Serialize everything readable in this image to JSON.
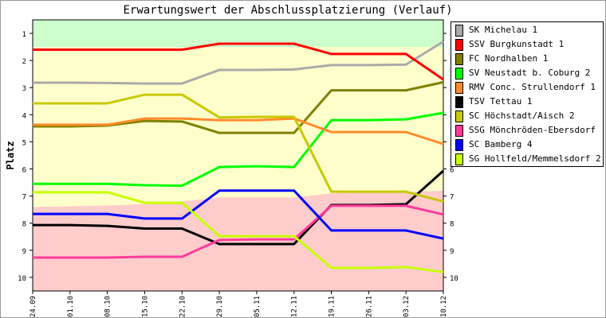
{
  "chart_data": {
    "type": "line",
    "title": "Erwartungswert der Abschlussplatzierung (Verlauf)",
    "xlabel": "",
    "ylabel": "Platz",
    "ylim": [
      0.5,
      10.5
    ],
    "y_inverted": true,
    "y_ticks": [
      1,
      2,
      3,
      4,
      5,
      6,
      7,
      8,
      9,
      10
    ],
    "categories": [
      "24.09",
      "01.10",
      "08.10",
      "15.10",
      "22.10",
      "29.10",
      "05.11",
      "12.11",
      "19.11",
      "26.11",
      "03.12",
      "10.12"
    ],
    "zones": {
      "promotion_boundary": [
        1.5,
        1.5,
        1.5,
        1.5,
        1.5,
        1.5,
        1.5,
        1.5,
        1.5,
        1.5,
        1.5,
        1.5
      ],
      "relegation_boundary": [
        7.4,
        7.38,
        7.35,
        7.3,
        7.2,
        7.05,
        7.05,
        7.05,
        6.9,
        6.85,
        6.85,
        6.8
      ],
      "colors": {
        "promotion": "#ccffcc",
        "middle": "#ffffcc",
        "relegation": "#ffcccc"
      }
    },
    "series": [
      {
        "name": "SK Michelau 1",
        "color": "#aaaaaa",
        "values": [
          2.82,
          2.82,
          2.83,
          2.85,
          2.85,
          2.35,
          2.35,
          2.33,
          2.17,
          2.17,
          2.15,
          1.3
        ]
      },
      {
        "name": "SSV Burgkunstadt 1",
        "color": "#ff0000",
        "values": [
          1.6,
          1.6,
          1.6,
          1.6,
          1.6,
          1.38,
          1.38,
          1.38,
          1.76,
          1.76,
          1.76,
          2.7
        ]
      },
      {
        "name": "FC Nordhalben 1",
        "color": "#808000",
        "values": [
          4.43,
          4.43,
          4.4,
          4.23,
          4.25,
          4.67,
          4.67,
          4.67,
          3.1,
          3.1,
          3.1,
          2.8
        ]
      },
      {
        "name": "SV Neustadt b. Coburg 2",
        "color": "#00ff00",
        "values": [
          6.55,
          6.55,
          6.55,
          6.6,
          6.62,
          5.93,
          5.9,
          5.93,
          4.2,
          4.2,
          4.17,
          3.93
        ]
      },
      {
        "name": "RMV Conc. Strullendorf 1",
        "color": "#ff8c28",
        "values": [
          4.37,
          4.37,
          4.37,
          4.14,
          4.14,
          4.2,
          4.2,
          4.14,
          4.64,
          4.64,
          4.64,
          5.08
        ]
      },
      {
        "name": "TSV Tettau 1",
        "color": "#000000",
        "values": [
          8.07,
          8.07,
          8.1,
          8.2,
          8.2,
          8.77,
          8.77,
          8.77,
          7.33,
          7.33,
          7.3,
          6.07
        ]
      },
      {
        "name": "SC Höchstadt/Aisch 2",
        "color": "#c8c800",
        "values": [
          3.58,
          3.58,
          3.58,
          3.26,
          3.26,
          4.1,
          4.08,
          4.08,
          6.84,
          6.84,
          6.84,
          7.2
        ]
      },
      {
        "name": "SSG Mönchröden-Ebersdorf",
        "color": "#ff3c9c",
        "values": [
          9.27,
          9.27,
          9.27,
          9.24,
          9.24,
          8.62,
          8.6,
          8.6,
          7.36,
          7.36,
          7.36,
          7.68
        ]
      },
      {
        "name": "SC Bamberg 4",
        "color": "#0000ff",
        "values": [
          7.66,
          7.66,
          7.66,
          7.83,
          7.83,
          6.8,
          6.8,
          6.8,
          8.27,
          8.27,
          8.27,
          8.57
        ]
      },
      {
        "name": "SG Hollfeld/Memmelsdorf 2",
        "color": "#c8ff00",
        "values": [
          6.86,
          6.86,
          6.86,
          7.25,
          7.25,
          8.48,
          8.48,
          8.48,
          9.65,
          9.65,
          9.62,
          9.8
        ]
      }
    ]
  }
}
